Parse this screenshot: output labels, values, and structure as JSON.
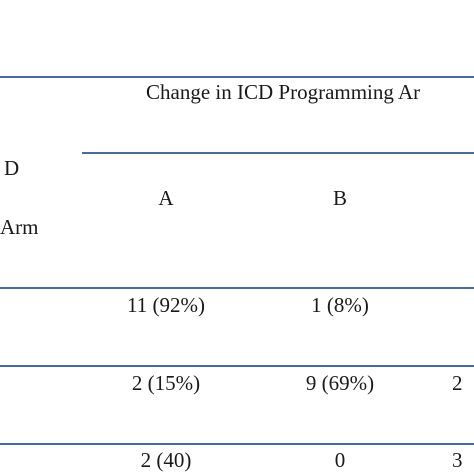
{
  "table": {
    "spanning_header": "Change in ICD Programming Ar",
    "row_header_line1": "D",
    "row_header_line2": "Arm",
    "columns": [
      "A",
      "B"
    ],
    "rows": [
      {
        "a": "11 (92%)",
        "b": "1 (8%)",
        "c": ""
      },
      {
        "a": "2 (15%)",
        "b": "9 (69%)",
        "c": "2"
      },
      {
        "a": "2 (40)",
        "b": "0",
        "c": "3"
      }
    ]
  },
  "colors": {
    "rule": "#4a6b9a",
    "text": "#1a1a1a"
  }
}
